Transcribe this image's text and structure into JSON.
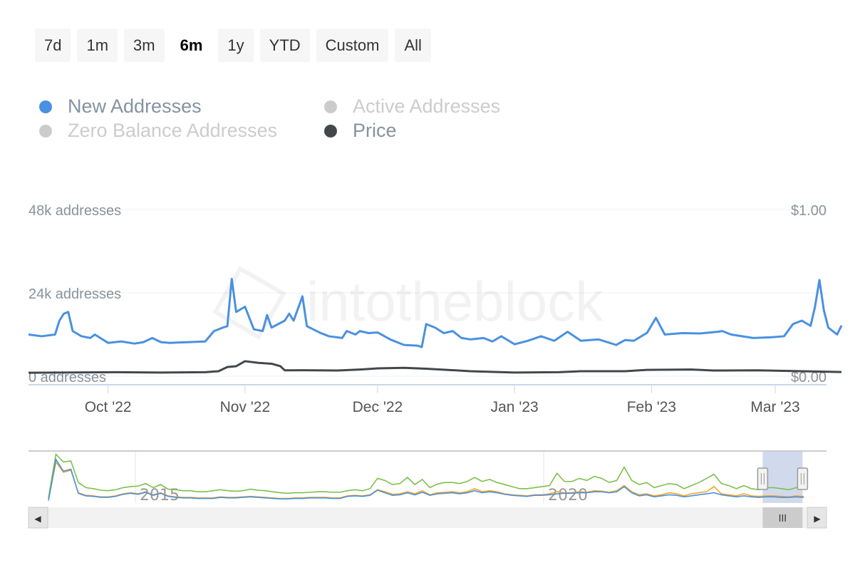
{
  "ranges": [
    {
      "label": "7d"
    },
    {
      "label": "1m"
    },
    {
      "label": "3m"
    },
    {
      "label": "6m",
      "active": true
    },
    {
      "label": "1y"
    },
    {
      "label": "YTD"
    },
    {
      "label": "Custom"
    },
    {
      "label": "All"
    }
  ],
  "legend": [
    {
      "label": "New Addresses",
      "color": "#4a90e2",
      "text_color": "#8592a0",
      "enabled": true
    },
    {
      "label": "Active Addresses",
      "color": "#cccccc",
      "text_color": "#cccccc",
      "enabled": false
    },
    {
      "label": "Zero Balance Addresses",
      "color": "#cccccc",
      "text_color": "#cccccc",
      "enabled": false
    },
    {
      "label": "Price",
      "color": "#43474c",
      "text_color": "#8592a0",
      "enabled": true
    }
  ],
  "watermark": "intotheblock",
  "chart_data": {
    "type": "line",
    "x_unit": "days since 2022-09-13",
    "y_left": {
      "ticks": [
        "0 addresses",
        "24k addresses",
        "48k addresses"
      ],
      "range": [
        0,
        48
      ]
    },
    "y_right": {
      "ticks": [
        "$0.00",
        "$1.00"
      ],
      "range": [
        0,
        1
      ]
    },
    "x_ticks": [
      {
        "label": "Oct '22",
        "day": 18
      },
      {
        "label": "Nov '22",
        "day": 49
      },
      {
        "label": "Dec '22",
        "day": 79
      },
      {
        "label": "Jan '23",
        "day": 110
      },
      {
        "label": "Feb '23",
        "day": 141
      },
      {
        "label": "Mar '23",
        "day": 169
      }
    ],
    "series": [
      {
        "name": "New Addresses",
        "color": "#4a90e2",
        "unit": "k addresses",
        "points": [
          [
            0,
            12
          ],
          [
            3,
            11.5
          ],
          [
            6,
            12
          ],
          [
            7,
            16
          ],
          [
            8,
            18
          ],
          [
            9,
            18.5
          ],
          [
            10,
            13
          ],
          [
            12,
            11.5
          ],
          [
            14,
            11
          ],
          [
            15,
            12
          ],
          [
            18,
            9.6
          ],
          [
            21,
            10
          ],
          [
            24,
            9.4
          ],
          [
            26,
            9.8
          ],
          [
            28,
            11
          ],
          [
            30,
            9.8
          ],
          [
            32,
            9.6
          ],
          [
            36,
            9.8
          ],
          [
            40,
            10
          ],
          [
            42,
            13
          ],
          [
            44,
            14
          ],
          [
            45,
            14.4
          ],
          [
            46,
            28
          ],
          [
            47,
            18.5
          ],
          [
            49,
            20
          ],
          [
            51,
            13.5
          ],
          [
            53,
            13
          ],
          [
            54,
            17.6
          ],
          [
            55,
            14
          ],
          [
            58,
            16
          ],
          [
            59,
            18
          ],
          [
            60,
            16
          ],
          [
            62,
            23
          ],
          [
            63,
            14.4
          ],
          [
            66,
            12.5
          ],
          [
            68,
            11.5
          ],
          [
            71,
            11
          ],
          [
            72,
            13
          ],
          [
            74,
            12
          ],
          [
            75,
            13
          ],
          [
            77,
            12.4
          ],
          [
            79,
            12.6
          ],
          [
            82,
            10.5
          ],
          [
            85,
            9
          ],
          [
            88,
            8.8
          ],
          [
            89,
            8.4
          ],
          [
            90,
            15
          ],
          [
            92,
            14
          ],
          [
            94,
            12.4
          ],
          [
            96,
            13
          ],
          [
            98,
            11
          ],
          [
            100,
            10.6
          ],
          [
            103,
            11
          ],
          [
            105,
            10
          ],
          [
            107,
            11.5
          ],
          [
            110,
            9.2
          ],
          [
            113,
            10.2
          ],
          [
            116,
            11.5
          ],
          [
            119,
            10.2
          ],
          [
            122,
            12.8
          ],
          [
            125,
            10.2
          ],
          [
            129,
            10.6
          ],
          [
            133,
            9
          ],
          [
            135,
            10.4
          ],
          [
            137,
            10.2
          ],
          [
            140,
            12.5
          ],
          [
            142,
            16.8
          ],
          [
            144,
            12
          ],
          [
            148,
            12.4
          ],
          [
            152,
            12.3
          ],
          [
            156,
            12.8
          ],
          [
            157,
            13
          ],
          [
            159,
            12
          ],
          [
            164,
            11
          ],
          [
            168,
            11.2
          ],
          [
            171,
            11.5
          ],
          [
            173,
            15
          ],
          [
            175,
            16
          ],
          [
            177,
            14.5
          ],
          [
            178,
            20
          ],
          [
            179,
            27.7
          ],
          [
            180,
            19
          ],
          [
            181,
            14
          ],
          [
            183,
            12
          ],
          [
            184,
            14.6
          ]
        ]
      },
      {
        "name": "Price",
        "color": "#43474c",
        "unit": "USD",
        "points": [
          [
            0,
            0.021
          ],
          [
            20,
            0.024
          ],
          [
            30,
            0.022
          ],
          [
            40,
            0.024
          ],
          [
            43,
            0.03
          ],
          [
            45,
            0.055
          ],
          [
            47,
            0.06
          ],
          [
            49,
            0.09
          ],
          [
            52,
            0.08
          ],
          [
            55,
            0.075
          ],
          [
            57,
            0.06
          ],
          [
            58,
            0.035
          ],
          [
            62,
            0.036
          ],
          [
            70,
            0.034
          ],
          [
            75,
            0.04
          ],
          [
            79,
            0.047
          ],
          [
            85,
            0.05
          ],
          [
            90,
            0.045
          ],
          [
            100,
            0.03
          ],
          [
            110,
            0.022
          ],
          [
            120,
            0.024
          ],
          [
            125,
            0.03
          ],
          [
            135,
            0.03
          ],
          [
            140,
            0.038
          ],
          [
            150,
            0.04
          ],
          [
            155,
            0.034
          ],
          [
            165,
            0.035
          ],
          [
            175,
            0.03
          ],
          [
            184,
            0.025
          ]
        ]
      }
    ],
    "navigator": {
      "x_ticks": [
        "2015",
        "2020"
      ],
      "selected_range_fraction": [
        0.92,
        0.97
      ],
      "series": [
        {
          "name": "Active Addresses",
          "color": "#7cc04a",
          "values": [
            10,
            95,
            80,
            82,
            40,
            30,
            28,
            25,
            24,
            26,
            30,
            32,
            33,
            38,
            30,
            36,
            27,
            26,
            24,
            24,
            22,
            22,
            24,
            26,
            24,
            23,
            24,
            27,
            25,
            24,
            22,
            20,
            19,
            20,
            20,
            21,
            22,
            22,
            21,
            21,
            24,
            26,
            24,
            28,
            48,
            44,
            36,
            38,
            50,
            36,
            46,
            30,
            37,
            40,
            40,
            38,
            42,
            50,
            42,
            46,
            40,
            36,
            32,
            28,
            28,
            30,
            32,
            34,
            58,
            42,
            42,
            48,
            44,
            52,
            48,
            40,
            44,
            70,
            44,
            36,
            40,
            30,
            34,
            38,
            36,
            28,
            34,
            40,
            48,
            56,
            38,
            34,
            28,
            34,
            28,
            26,
            30,
            30,
            28,
            26,
            30,
            28
          ]
        },
        {
          "name": "Zero Balance Addresses",
          "color": "#f5a623",
          "values": [
            5,
            80,
            60,
            64,
            20,
            15,
            14,
            12,
            12,
            14,
            18,
            20,
            18,
            22,
            16,
            20,
            14,
            12,
            11,
            11,
            10,
            10,
            10,
            12,
            11,
            11,
            12,
            13,
            12,
            11,
            10,
            9,
            9,
            10,
            10,
            11,
            11,
            11,
            10,
            10,
            14,
            15,
            14,
            16,
            26,
            22,
            17,
            18,
            22,
            18,
            24,
            16,
            20,
            21,
            22,
            20,
            22,
            28,
            22,
            24,
            22,
            18,
            16,
            15,
            14,
            16,
            16,
            18,
            22,
            20,
            20,
            22,
            21,
            24,
            23,
            21,
            24,
            34,
            22,
            16,
            18,
            14,
            16,
            20,
            18,
            14,
            18,
            20,
            22,
            32,
            18,
            16,
            14,
            18,
            14,
            13,
            14,
            14,
            13,
            12,
            14,
            13
          ]
        },
        {
          "name": "New Addresses",
          "color": "#4a90e2",
          "values": [
            5,
            85,
            62,
            66,
            19,
            14,
            13,
            11,
            11,
            13,
            17,
            19,
            17,
            21,
            15,
            19,
            13,
            11,
            10,
            10,
            9,
            9,
            9,
            11,
            10,
            10,
            11,
            12,
            11,
            10,
            9,
            8,
            8,
            9,
            9,
            10,
            10,
            10,
            9,
            9,
            13,
            14,
            13,
            15,
            25,
            20,
            15,
            16,
            20,
            16,
            21,
            15,
            18,
            19,
            20,
            18,
            20,
            24,
            20,
            22,
            20,
            17,
            15,
            14,
            13,
            15,
            15,
            16,
            18,
            19,
            19,
            20,
            20,
            22,
            22,
            20,
            22,
            32,
            20,
            14,
            16,
            12,
            14,
            16,
            15,
            12,
            14,
            16,
            18,
            20,
            16,
            14,
            12,
            14,
            12,
            11,
            12,
            12,
            11,
            11,
            12,
            11
          ]
        }
      ]
    }
  },
  "scrollbar": {
    "left_arrow": "◀",
    "right_arrow": "▶",
    "grip": "III"
  }
}
